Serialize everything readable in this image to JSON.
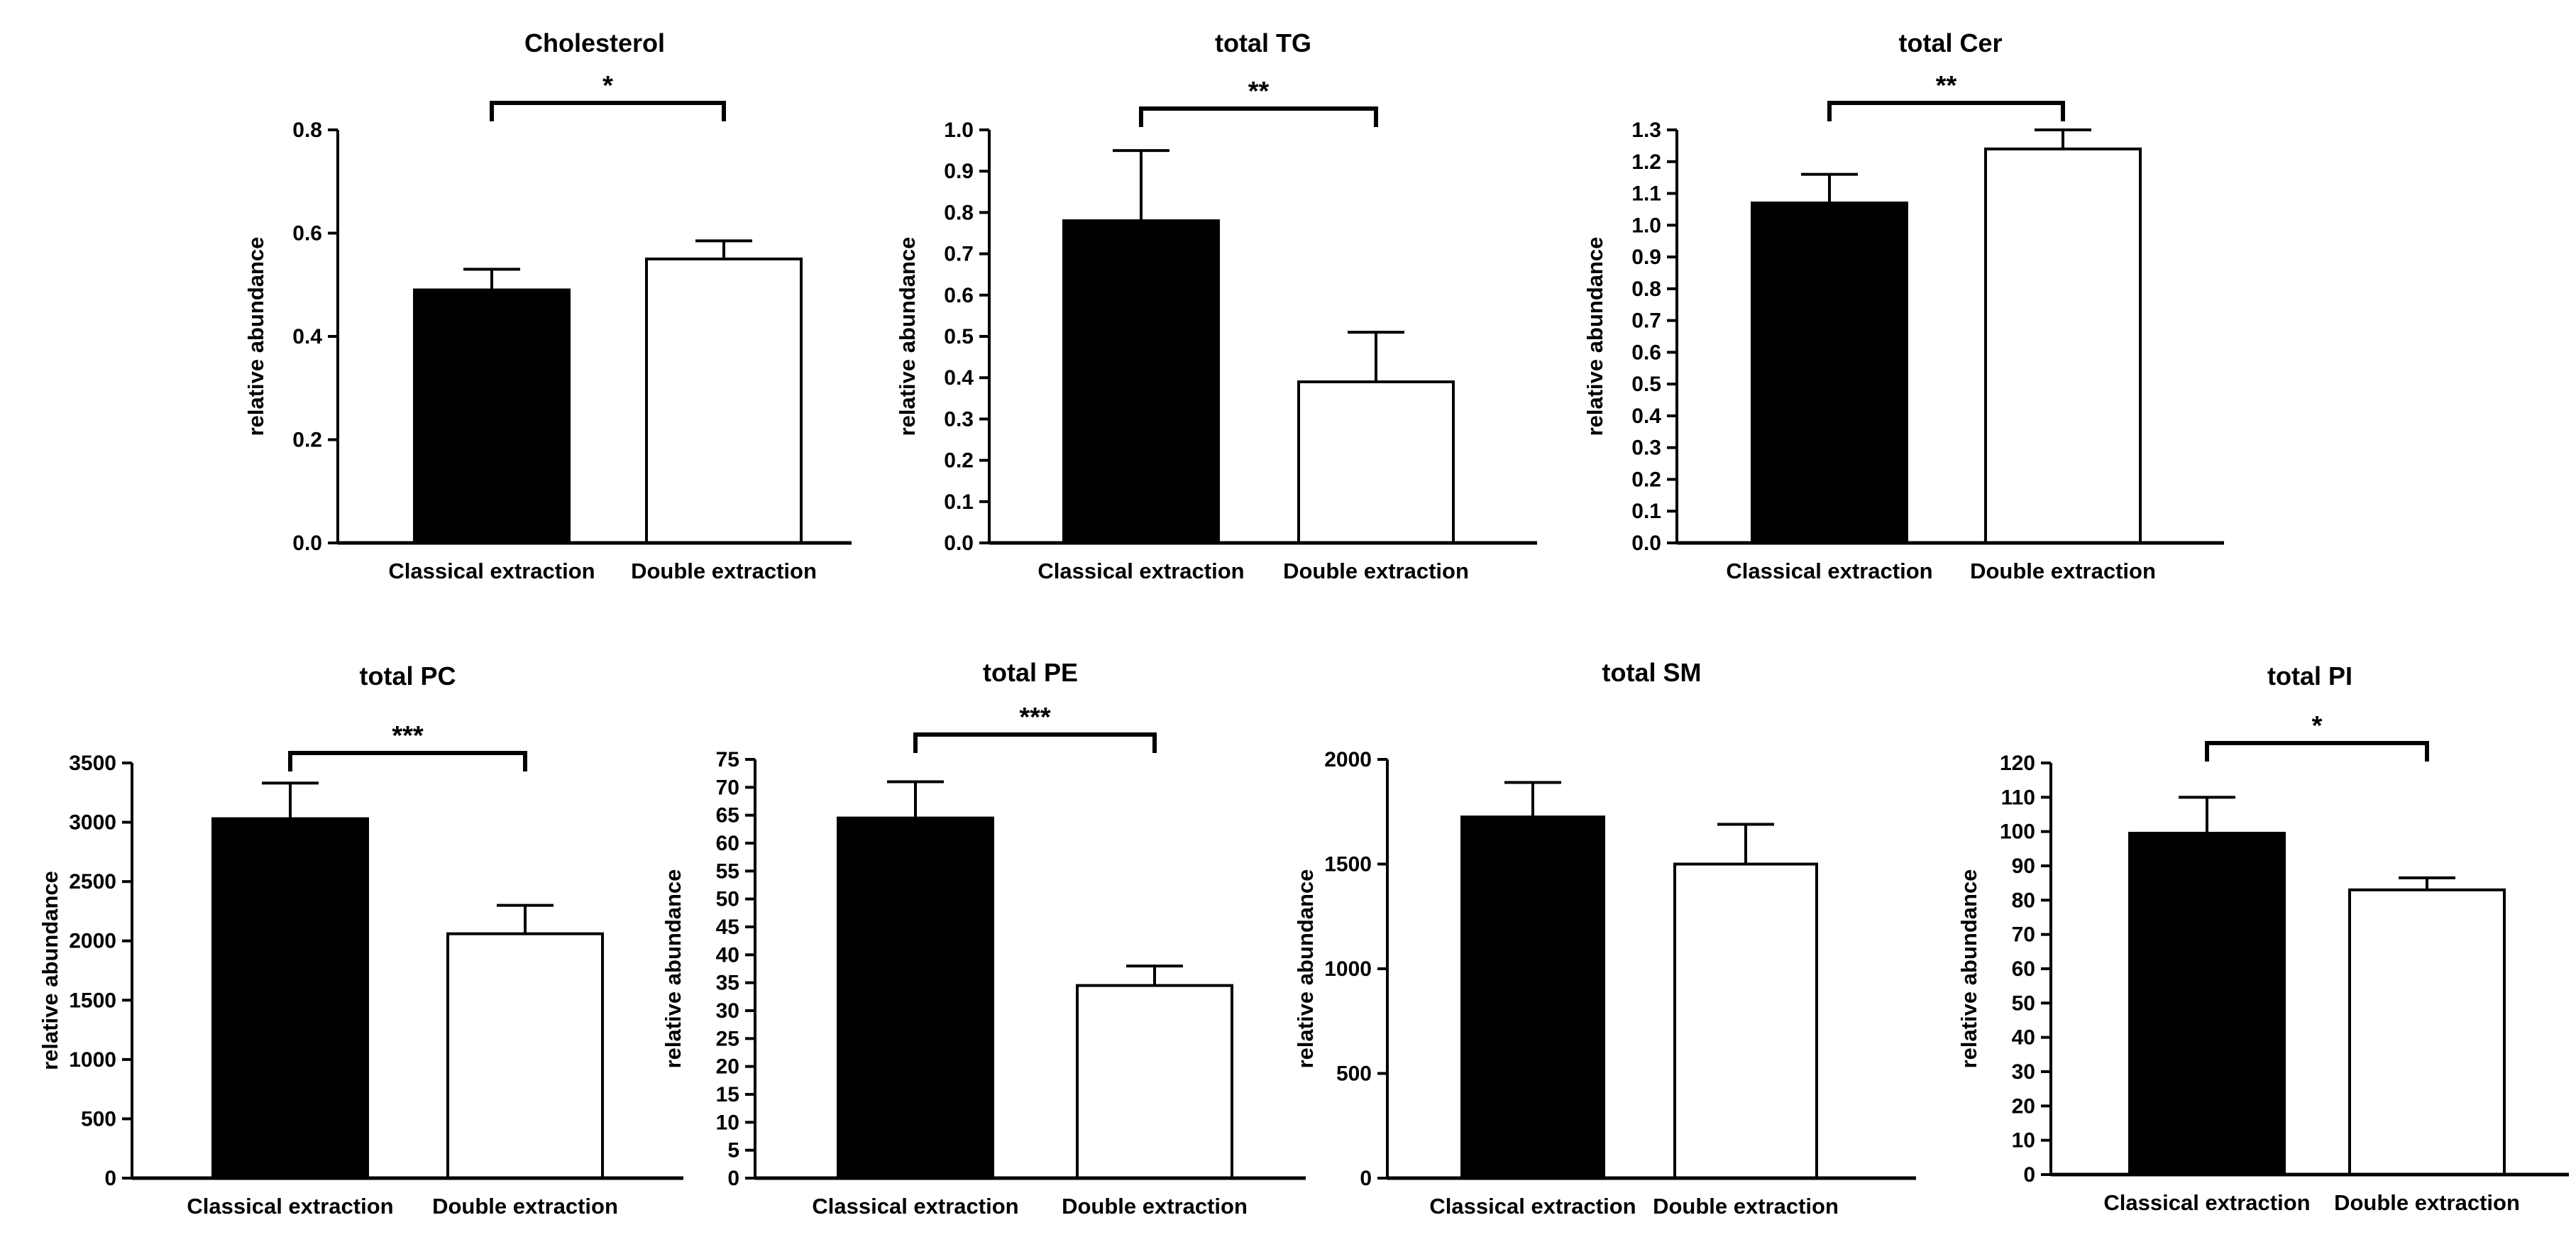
{
  "chart_data": [
    {
      "type": "bar",
      "title": "Cholesterol",
      "xlabel": "",
      "ylabel": "relative abundance",
      "categories": [
        "Classical extraction",
        "Double extraction"
      ],
      "values": [
        0.49,
        0.55
      ],
      "errors": [
        0.04,
        0.035
      ],
      "ylim": [
        0,
        0.8
      ],
      "yticks": [
        0.0,
        0.2,
        0.4,
        0.6,
        0.8
      ],
      "ytick_labels": [
        "0.0",
        "0.2",
        "0.4",
        "0.6",
        "0.8"
      ],
      "significance": "*",
      "colors": [
        "#000000",
        "#ffffff"
      ]
    },
    {
      "type": "bar",
      "title": "total TG",
      "xlabel": "",
      "ylabel": "relative abundance",
      "categories": [
        "Classical extraction",
        "Double extraction"
      ],
      "values": [
        0.78,
        0.39
      ],
      "errors": [
        0.17,
        0.12
      ],
      "ylim": [
        0,
        1.0
      ],
      "yticks": [
        0.0,
        0.1,
        0.2,
        0.3,
        0.4,
        0.5,
        0.6,
        0.7,
        0.8,
        0.9,
        1.0
      ],
      "ytick_labels": [
        "0.0",
        "0.1",
        "0.2",
        "0.3",
        "0.4",
        "0.5",
        "0.6",
        "0.7",
        "0.8",
        "0.9",
        "1.0"
      ],
      "significance": "**",
      "colors": [
        "#000000",
        "#ffffff"
      ]
    },
    {
      "type": "bar",
      "title": "total Cer",
      "xlabel": "",
      "ylabel": "relative abundance",
      "categories": [
        "Classical extraction",
        "Double extraction"
      ],
      "values": [
        1.07,
        1.24
      ],
      "errors": [
        0.09,
        0.06
      ],
      "ylim": [
        0,
        1.3
      ],
      "yticks": [
        0.0,
        0.1,
        0.2,
        0.3,
        0.4,
        0.5,
        0.6,
        0.7,
        0.8,
        0.9,
        1.0,
        1.1,
        1.2,
        1.3
      ],
      "ytick_labels": [
        "0.0",
        "0.1",
        "0.2",
        "0.3",
        "0.4",
        "0.5",
        "0.6",
        "0.7",
        "0.8",
        "0.9",
        "1.0",
        "1.1",
        "1.2",
        "1.3"
      ],
      "significance": "**",
      "colors": [
        "#000000",
        "#ffffff"
      ]
    },
    {
      "type": "bar",
      "title": "total PC",
      "xlabel": "",
      "ylabel": "relative abundance",
      "categories": [
        "Classical extraction",
        "Double extraction"
      ],
      "values": [
        3030,
        2060
      ],
      "errors": [
        300,
        240
      ],
      "ylim": [
        0,
        3500
      ],
      "yticks": [
        0,
        500,
        1000,
        1500,
        2000,
        2500,
        3000,
        3500
      ],
      "ytick_labels": [
        "0",
        "500",
        "1000",
        "1500",
        "2000",
        "2500",
        "3000",
        "3500"
      ],
      "significance": "***",
      "colors": [
        "#000000",
        "#ffffff"
      ]
    },
    {
      "type": "bar",
      "title": "total PE",
      "xlabel": "",
      "ylabel": "relative abundance",
      "categories": [
        "Classical extraction",
        "Double extraction"
      ],
      "values": [
        64.5,
        34.5
      ],
      "errors": [
        6.5,
        3.5
      ],
      "ylim": [
        0,
        75
      ],
      "yticks": [
        0,
        5,
        10,
        15,
        20,
        25,
        30,
        35,
        40,
        45,
        50,
        55,
        60,
        65,
        70,
        75
      ],
      "ytick_labels": [
        "0",
        "5",
        "10",
        "15",
        "20",
        "25",
        "30",
        "35",
        "40",
        "45",
        "50",
        "55",
        "60",
        "65",
        "70",
        "75"
      ],
      "significance": "***",
      "colors": [
        "#000000",
        "#ffffff"
      ]
    },
    {
      "type": "bar",
      "title": "total SM",
      "xlabel": "",
      "ylabel": "relative abundance",
      "categories": [
        "Classical extraction",
        "Double extraction"
      ],
      "values": [
        1725,
        1500
      ],
      "errors": [
        165,
        190
      ],
      "ylim": [
        0,
        2000
      ],
      "yticks": [
        0,
        500,
        1000,
        1500,
        2000
      ],
      "ytick_labels": [
        "0",
        "500",
        "1000",
        "1500",
        "2000"
      ],
      "significance": "",
      "colors": [
        "#000000",
        "#ffffff"
      ]
    },
    {
      "type": "bar",
      "title": "total PI",
      "xlabel": "",
      "ylabel": "relative abundance",
      "categories": [
        "Classical extraction",
        "Double extraction"
      ],
      "values": [
        99.5,
        83
      ],
      "errors": [
        10.5,
        3.5
      ],
      "ylim": [
        0,
        120
      ],
      "yticks": [
        0,
        10,
        20,
        30,
        40,
        50,
        60,
        70,
        80,
        90,
        100,
        110,
        120
      ],
      "ytick_labels": [
        "0",
        "10",
        "20",
        "30",
        "40",
        "50",
        "60",
        "70",
        "80",
        "90",
        "100",
        "110",
        "120"
      ],
      "significance": "*",
      "colors": [
        "#000000",
        "#ffffff"
      ]
    }
  ]
}
